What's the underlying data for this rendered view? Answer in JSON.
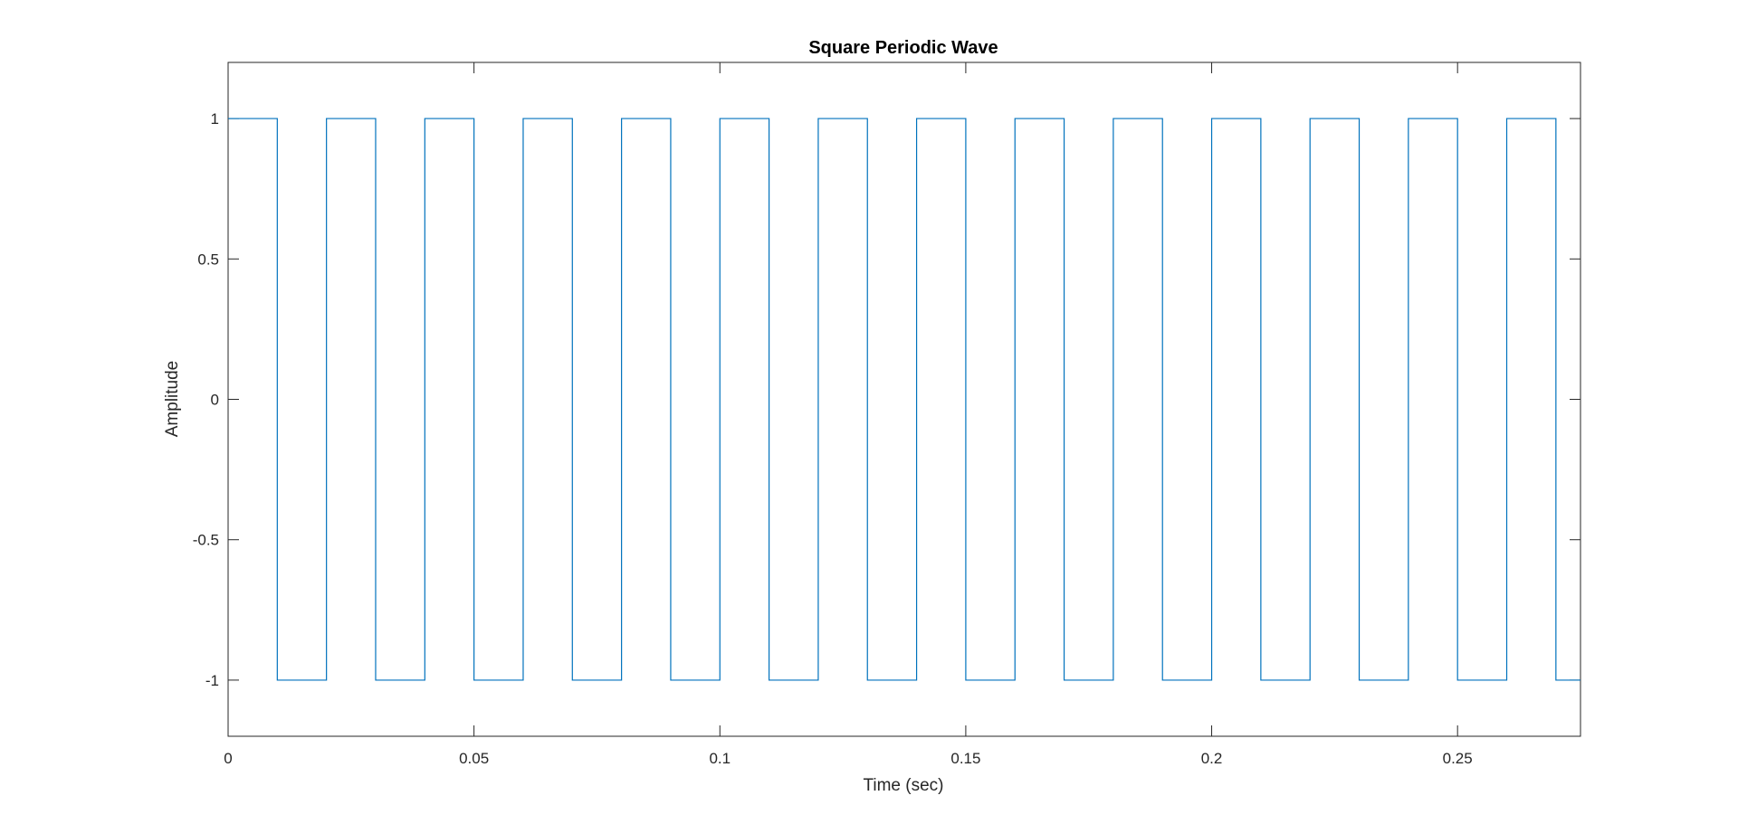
{
  "chart_data": {
    "type": "line",
    "title": "Square Periodic Wave",
    "xlabel": "Time (sec)",
    "ylabel": "Amplitude",
    "xlim": [
      0,
      0.275
    ],
    "ylim": [
      -1.2,
      1.2
    ],
    "x_ticks": [
      0,
      0.05,
      0.1,
      0.15,
      0.2,
      0.25
    ],
    "x_tick_labels": [
      "0",
      "0.05",
      "0.1",
      "0.15",
      "0.2",
      "0.25"
    ],
    "y_ticks": [
      1,
      0.5,
      0,
      -0.5,
      -1
    ],
    "y_tick_labels": [
      "1",
      "0.5",
      "0",
      "-0.5",
      "-1"
    ],
    "grid": false,
    "legend": false,
    "line_color": "#0072BD",
    "series": [
      {
        "x": [
          0,
          0.01,
          0.01,
          0.02,
          0.02,
          0.03,
          0.03,
          0.04,
          0.04,
          0.05,
          0.05,
          0.06,
          0.06,
          0.07,
          0.07,
          0.08,
          0.08,
          0.09,
          0.09,
          0.1,
          0.1,
          0.11,
          0.11,
          0.12,
          0.12,
          0.13,
          0.13,
          0.14,
          0.14,
          0.15,
          0.15,
          0.16,
          0.16,
          0.17,
          0.17,
          0.18,
          0.18,
          0.19,
          0.19,
          0.2,
          0.2,
          0.21,
          0.21,
          0.22,
          0.22,
          0.23,
          0.23,
          0.24,
          0.24,
          0.25,
          0.25,
          0.26,
          0.26,
          0.27,
          0.27,
          0.275
        ],
        "values": [
          1,
          1,
          -1,
          -1,
          1,
          1,
          -1,
          -1,
          1,
          1,
          -1,
          -1,
          1,
          1,
          -1,
          -1,
          1,
          1,
          -1,
          -1,
          1,
          1,
          -1,
          -1,
          1,
          1,
          -1,
          -1,
          1,
          1,
          -1,
          -1,
          1,
          1,
          -1,
          -1,
          1,
          1,
          -1,
          -1,
          1,
          1,
          -1,
          -1,
          1,
          1,
          -1,
          -1,
          1,
          1,
          -1,
          -1,
          1,
          1,
          -1,
          -1
        ]
      }
    ]
  }
}
